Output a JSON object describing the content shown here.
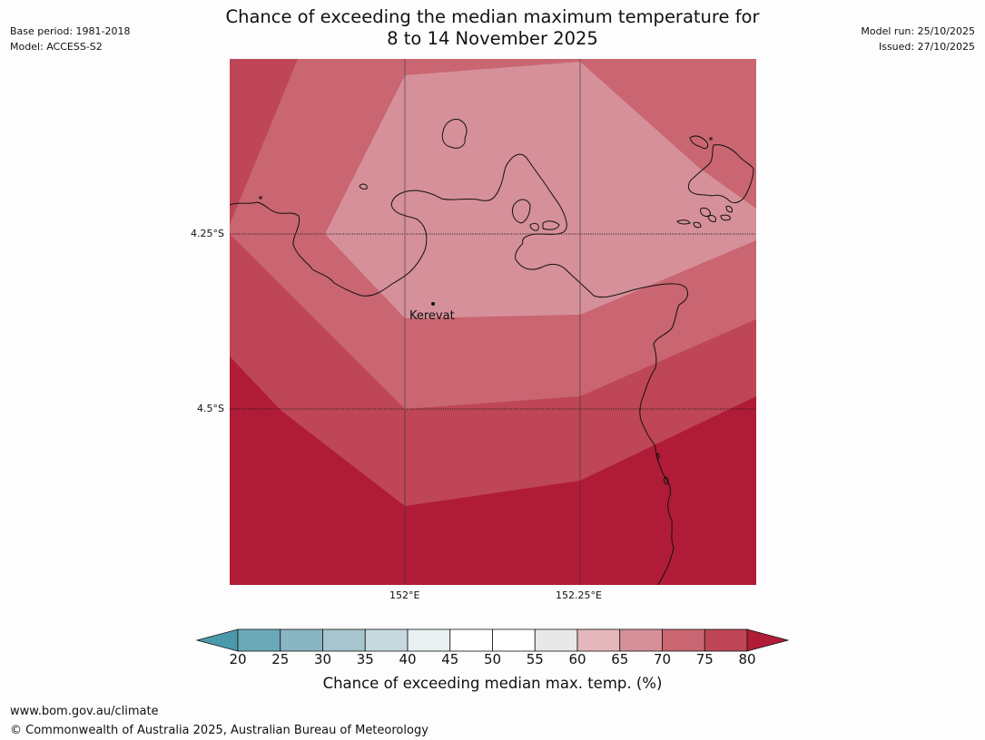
{
  "header": {
    "title_line1": "Chance of exceeding the median maximum temperature for",
    "title_line2": "8 to 14 November 2025",
    "base_period": "Base period: 1981-2018",
    "model": "Model: ACCESS-S2",
    "model_run": "Model run: 25/10/2025",
    "issued": "Issued: 27/10/2025"
  },
  "map": {
    "lat_labels": [
      "4.25°S",
      "4.5°S"
    ],
    "lon_labels": [
      "152°E",
      "152.25°E"
    ],
    "place": {
      "name": "Kerevat"
    },
    "colors": {
      "c65_70": "#d6909a",
      "c70_75": "#c96672",
      "c75_80": "#be4656",
      "c80_plus": "#b01c38",
      "coast": "#111111"
    }
  },
  "colorbar": {
    "ticks": [
      "20",
      "25",
      "30",
      "35",
      "40",
      "45",
      "50",
      "55",
      "60",
      "65",
      "70",
      "75",
      "80"
    ],
    "bin_colors": [
      "#4b9aab",
      "#6ba9b9",
      "#8ab5c3",
      "#a6c5cc",
      "#c6d9dd",
      "#e8f0f2",
      "#ffffff",
      "#ffffff",
      "#e8e8e8",
      "#e4b8bc",
      "#d6909a",
      "#c96672",
      "#be4656",
      "#b01c38"
    ],
    "label": "Chance of exceeding median max. temp. (%)"
  },
  "footer": {
    "url": "www.bom.gov.au/climate",
    "copyright": "© Commonwealth of Australia 2025, Australian Bureau of Meteorology"
  }
}
